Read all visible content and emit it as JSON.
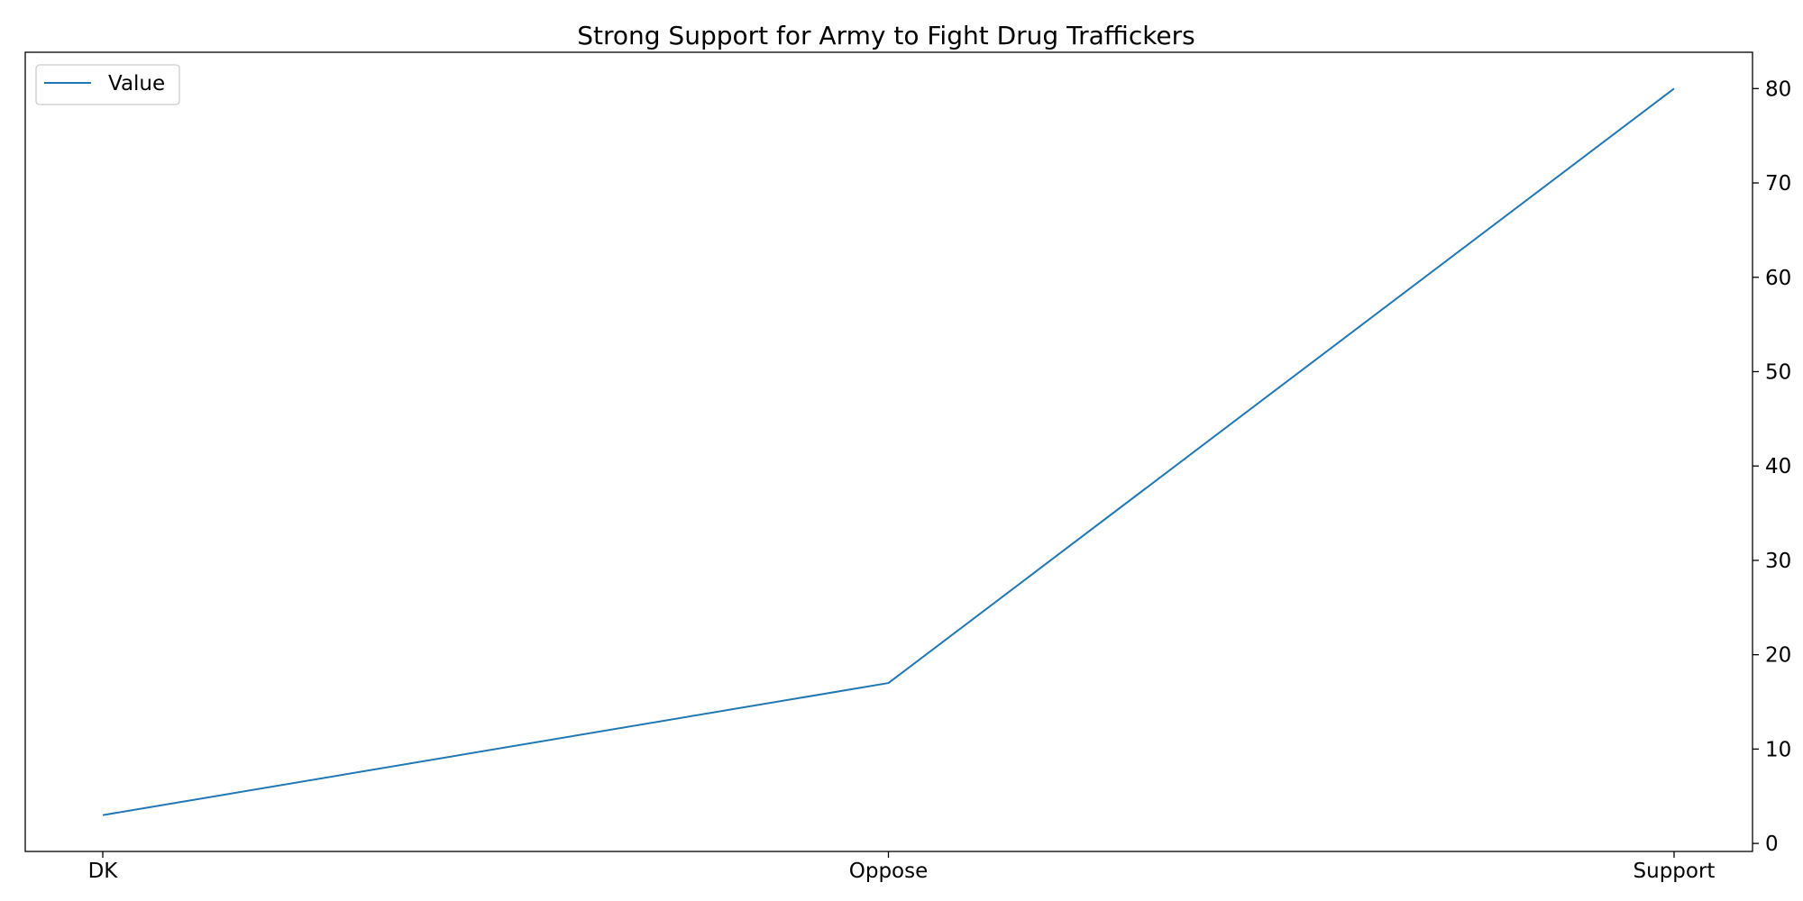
{
  "chart_data": {
    "type": "line",
    "title": "Strong Support for Army to Fight Drug Traffickers",
    "xlabel": "",
    "ylabel": "",
    "categories": [
      "DK",
      "Oppose",
      "Support"
    ],
    "series": [
      {
        "name": "Value",
        "values": [
          3,
          17,
          80
        ],
        "color": "#1f77b4"
      }
    ],
    "ylim": [
      -0.85,
      83.85
    ],
    "yticks": [
      0,
      10,
      20,
      30,
      40,
      50,
      60,
      70,
      80
    ],
    "y_axis_side": "right",
    "grid": false,
    "legend": "top-left"
  }
}
